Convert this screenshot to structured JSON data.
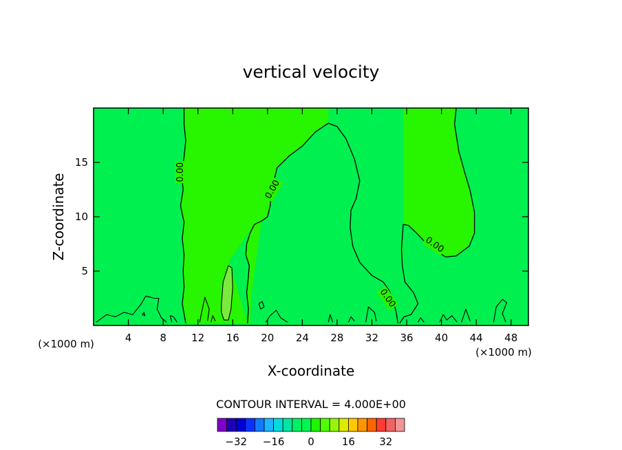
{
  "chart_data": {
    "type": "contour",
    "title": "vertical velocity",
    "xlabel": "X-coordinate",
    "ylabel": "Z-coordinate",
    "x_unit": "(×1000 m)",
    "xlim": [
      0,
      50
    ],
    "ylim": [
      0,
      20
    ],
    "x_ticks": [
      4,
      8,
      12,
      16,
      20,
      24,
      28,
      32,
      36,
      40,
      44,
      48
    ],
    "y_ticks": [
      5,
      10,
      15
    ],
    "contour_label": "0.00",
    "contour_interval_text": "CONTOUR INTERVAL = 4.000E+00",
    "colorbar": {
      "colors": [
        "#7f00c8",
        "#1e00b4",
        "#0000d2",
        "#0a32ff",
        "#1478ff",
        "#1eb4ff",
        "#00dcdc",
        "#00e6a0",
        "#00f064",
        "#00f550",
        "#1ef500",
        "#50ff00",
        "#96f50a",
        "#dceb00",
        "#ffc800",
        "#ff9600",
        "#ff6400",
        "#ff3c32",
        "#f06464",
        "#f09696"
      ],
      "min": -40,
      "step": 4,
      "tick_values": [
        -32,
        -16,
        0,
        16,
        32
      ],
      "tick_labels": [
        "−32",
        "−16",
        "0",
        "16",
        "32"
      ]
    },
    "colors": {
      "background_field": "#00f050",
      "positive_field": "#28f500",
      "strong_positive_field": "#7aeb3c"
    },
    "contours_0": [
      [
        [
          10.4,
          20
        ],
        [
          10.4,
          18.5
        ],
        [
          10.6,
          17
        ],
        [
          10.4,
          15.5
        ],
        [
          10.1,
          14
        ],
        [
          10.3,
          12.5
        ],
        [
          10.0,
          11
        ],
        [
          10.4,
          9.5
        ],
        [
          10.2,
          8
        ],
        [
          10.4,
          6.5
        ],
        [
          10.3,
          5
        ],
        [
          10.4,
          3.5
        ],
        [
          10.2,
          2
        ],
        [
          10.6,
          0.2
        ]
      ],
      [
        [
          17.7,
          0.2
        ],
        [
          17.8,
          1.5
        ],
        [
          17.6,
          3
        ],
        [
          17.8,
          4.5
        ],
        [
          17.9,
          5.5
        ],
        [
          17.5,
          6.5
        ],
        [
          17.6,
          7.5
        ],
        [
          18.0,
          8.5
        ],
        [
          18.5,
          9.3
        ],
        [
          19.3,
          9.6
        ],
        [
          20.0,
          10.0
        ],
        [
          20.3,
          11.0
        ],
        [
          20.5,
          12.5
        ],
        [
          20.8,
          13.5
        ],
        [
          21.1,
          14.5
        ],
        [
          22.5,
          15.6
        ],
        [
          24.0,
          16.5
        ],
        [
          25.5,
          17.8
        ],
        [
          27.0,
          18.6
        ],
        [
          28.0,
          18.3
        ],
        [
          29.0,
          17.2
        ],
        [
          30.0,
          15.3
        ],
        [
          30.6,
          13.3
        ],
        [
          30.2,
          11.7
        ],
        [
          29.6,
          10.6
        ],
        [
          29.5,
          9.0
        ],
        [
          29.8,
          7.3
        ],
        [
          30.6,
          5.8
        ],
        [
          32.0,
          4.6
        ],
        [
          33.3,
          4.0
        ],
        [
          34.0,
          3.2
        ],
        [
          34.4,
          2.5
        ],
        [
          34.8,
          1.2
        ],
        [
          35.0,
          0.2
        ]
      ],
      [
        [
          35.2,
          0.2
        ],
        [
          35.7,
          0.8
        ],
        [
          36.5,
          1.0
        ],
        [
          37.3,
          2.0
        ],
        [
          36.8,
          3.0
        ],
        [
          35.8,
          4.0
        ],
        [
          35.5,
          5.5
        ],
        [
          35.4,
          7.0
        ],
        [
          35.6,
          9.3
        ],
        [
          36.2,
          9.2
        ],
        [
          37.0,
          8.6
        ],
        [
          38.2,
          7.6
        ],
        [
          39.5,
          6.8
        ],
        [
          40.5,
          6.3
        ],
        [
          41.7,
          6.4
        ],
        [
          43.2,
          7.3
        ],
        [
          43.8,
          8.5
        ],
        [
          43.8,
          10.4
        ],
        [
          43.3,
          12.4
        ],
        [
          42.7,
          14.0
        ],
        [
          42.0,
          16.0
        ],
        [
          41.5,
          18.5
        ],
        [
          41.7,
          20
        ]
      ]
    ],
    "contours_small": [
      [
        [
          14.7,
          2.0
        ],
        [
          14.9,
          4.0
        ],
        [
          15.5,
          5.5
        ],
        [
          15.9,
          5.3
        ],
        [
          16.0,
          3.5
        ],
        [
          15.8,
          1.5
        ],
        [
          15.5,
          0.5
        ],
        [
          15.0,
          0.5
        ],
        [
          14.7,
          1.2
        ],
        [
          14.7,
          2.0
        ]
      ],
      [
        [
          0.3,
          0.3
        ],
        [
          1.5,
          1.0
        ],
        [
          2.5,
          0.8
        ],
        [
          3.5,
          1.2
        ],
        [
          4.5,
          1.0
        ],
        [
          5.5,
          2.0
        ],
        [
          6.0,
          2.7
        ],
        [
          7.0,
          2.5
        ],
        [
          7.5,
          2.5
        ],
        [
          7.3,
          1.5
        ],
        [
          7.8,
          0.7
        ],
        [
          8.4,
          0.3
        ]
      ],
      [
        [
          9.0,
          0.3
        ],
        [
          8.8,
          0.9
        ],
        [
          9.2,
          0.8
        ],
        [
          9.6,
          0.3
        ]
      ],
      [
        [
          12.2,
          0.3
        ],
        [
          12.5,
          1.5
        ],
        [
          12.8,
          2.6
        ],
        [
          13.3,
          1.5
        ],
        [
          13.1,
          0.4
        ]
      ],
      [
        [
          13.5,
          0.3
        ],
        [
          13.7,
          0.9
        ],
        [
          14.0,
          0.4
        ]
      ],
      [
        [
          19.0,
          2.0
        ],
        [
          19.4,
          2.2
        ],
        [
          19.6,
          1.7
        ],
        [
          19.2,
          1.5
        ],
        [
          19.0,
          2.0
        ]
      ],
      [
        [
          19.8,
          0.3
        ],
        [
          20.3,
          0.9
        ],
        [
          21.0,
          1.4
        ],
        [
          21.5,
          0.7
        ],
        [
          22.3,
          0.3
        ]
      ],
      [
        [
          27.0,
          0.3
        ],
        [
          27.2,
          1.0
        ],
        [
          27.5,
          0.3
        ]
      ],
      [
        [
          29.3,
          0.3
        ],
        [
          29.6,
          0.8
        ],
        [
          30.0,
          0.4
        ]
      ],
      [
        [
          31.3,
          0.3
        ],
        [
          31.6,
          1.7
        ],
        [
          32.3,
          1.2
        ],
        [
          32.5,
          0.4
        ]
      ],
      [
        [
          37.3,
          0.3
        ],
        [
          37.6,
          0.7
        ],
        [
          38.0,
          0.3
        ]
      ],
      [
        [
          39.8,
          0.3
        ],
        [
          40.2,
          1.0
        ],
        [
          40.6,
          0.5
        ],
        [
          41.2,
          0.9
        ],
        [
          41.8,
          0.3
        ]
      ],
      [
        [
          42.3,
          0.3
        ],
        [
          42.8,
          1.5
        ],
        [
          43.3,
          0.4
        ]
      ],
      [
        [
          46.0,
          0.3
        ],
        [
          46.3,
          1.7
        ],
        [
          47.0,
          2.4
        ],
        [
          47.5,
          2.1
        ],
        [
          47.0,
          1.1
        ],
        [
          47.4,
          0.3
        ]
      ],
      [
        [
          5.6,
          1.0
        ],
        [
          5.8,
          1.2
        ],
        [
          5.9,
          0.9
        ],
        [
          5.6,
          1.0
        ]
      ]
    ],
    "contour_label_positions": [
      [
        10.0,
        14.1
      ],
      [
        20.6,
        12.5
      ],
      [
        39.2,
        7.4
      ],
      [
        33.8,
        2.5
      ]
    ]
  }
}
